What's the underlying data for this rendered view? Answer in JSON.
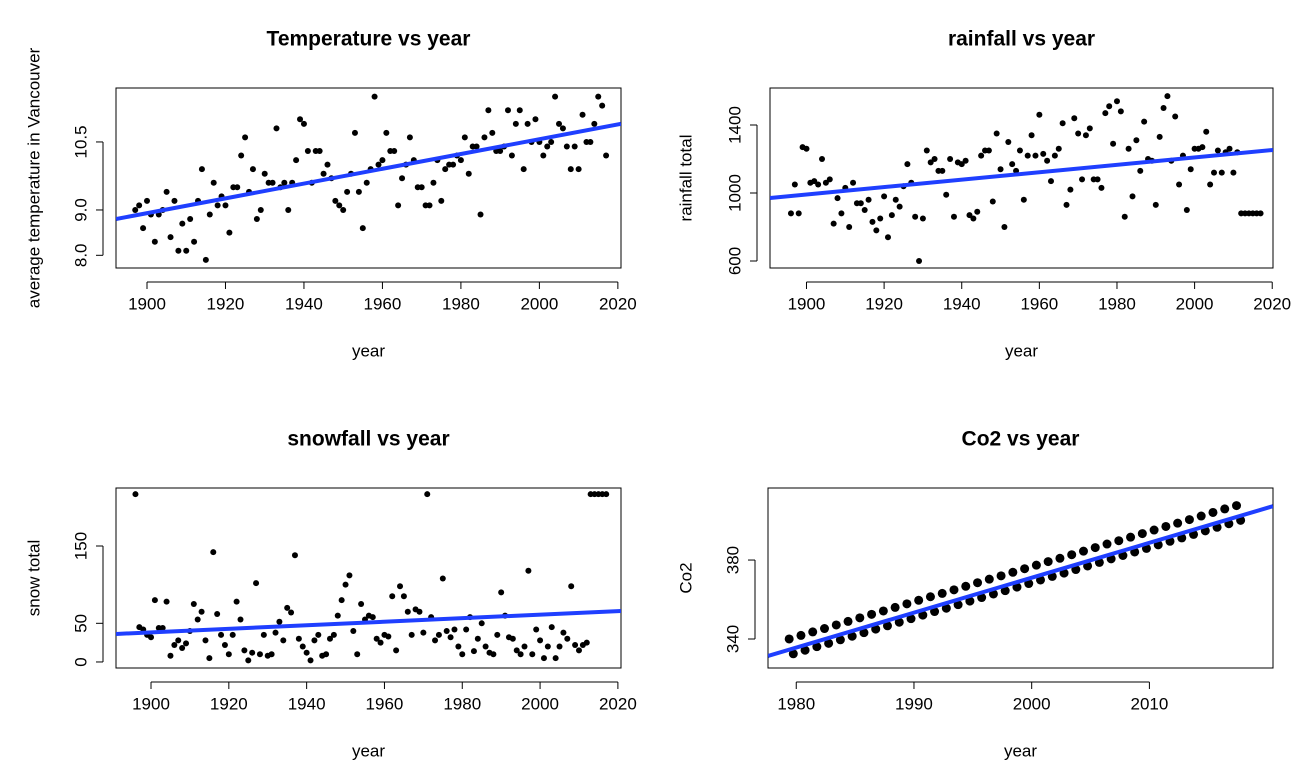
{
  "chart_data": [
    {
      "type": "scatter",
      "title": "Temperature vs year",
      "x_label": "year",
      "y_label": "average temperature in Vancouver",
      "color": "#000000",
      "x": [
        1897,
        1898,
        1899,
        1900,
        1901,
        1902,
        1903,
        1904,
        1905,
        1906,
        1907,
        1908,
        1909,
        1910,
        1911,
        1912,
        1913,
        1914,
        1915,
        1916,
        1917,
        1918,
        1919,
        1920,
        1921,
        1922,
        1923,
        1924,
        1925,
        1926,
        1927,
        1928,
        1929,
        1930,
        1931,
        1932,
        1933,
        1934,
        1935,
        1936,
        1937,
        1938,
        1939,
        1940,
        1941,
        1942,
        1943,
        1944,
        1945,
        1946,
        1947,
        1948,
        1949,
        1950,
        1951,
        1952,
        1953,
        1954,
        1955,
        1956,
        1957,
        1958,
        1959,
        1960,
        1961,
        1962,
        1963,
        1964,
        1965,
        1966,
        1967,
        1968,
        1969,
        1970,
        1971,
        1972,
        1973,
        1974,
        1975,
        1976,
        1977,
        1978,
        1979,
        1980,
        1981,
        1982,
        1983,
        1984,
        1985,
        1986,
        1987,
        1988,
        1989,
        1990,
        1991,
        1992,
        1993,
        1994,
        1995,
        1996,
        1997,
        1998,
        1999,
        2000,
        2001,
        2002,
        2003,
        2004,
        2005,
        2006,
        2007,
        2008,
        2009,
        2010,
        2011,
        2012,
        2013,
        2014,
        2015,
        2016,
        2017
      ],
      "values": [
        9.0,
        9.1,
        8.6,
        9.2,
        8.9,
        8.3,
        8.9,
        9.0,
        9.4,
        8.4,
        9.2,
        8.1,
        8.7,
        8.1,
        8.8,
        8.3,
        9.2,
        9.9,
        7.9,
        8.9,
        9.6,
        9.1,
        9.3,
        9.1,
        8.5,
        9.5,
        9.5,
        10.2,
        10.6,
        9.4,
        9.9,
        8.8,
        9.0,
        9.8,
        9.6,
        9.6,
        10.8,
        9.5,
        9.6,
        9.0,
        9.6,
        10.1,
        11.0,
        10.9,
        10.3,
        9.6,
        10.3,
        10.3,
        9.8,
        10.0,
        9.7,
        9.2,
        9.1,
        9.0,
        9.4,
        9.8,
        10.7,
        9.4,
        8.6,
        9.6,
        9.9,
        11.5,
        10.0,
        10.1,
        10.7,
        10.3,
        10.3,
        9.1,
        9.7,
        10.0,
        10.6,
        10.1,
        9.5,
        9.5,
        9.1,
        9.1,
        9.6,
        10.1,
        9.2,
        9.9,
        10.0,
        10.0,
        10.2,
        10.1,
        10.6,
        9.8,
        10.4,
        10.4,
        8.9,
        10.6,
        11.2,
        10.7,
        10.3,
        10.3,
        10.4,
        11.2,
        10.2,
        10.9,
        11.2,
        9.9,
        10.9,
        10.5,
        11.0,
        10.5,
        10.2,
        10.4,
        10.5,
        11.5,
        10.9,
        10.8,
        10.4,
        9.9,
        10.4,
        9.9,
        11.1,
        10.5,
        10.5,
        10.9,
        11.5,
        11.3,
        10.2
      ],
      "trend_x": [
        1892.1,
        2020.8
      ],
      "trend_values": [
        8.8,
        10.9
      ],
      "trend_color": "#1f3fff",
      "xlim": [
        1892.1,
        2020.8
      ],
      "ylim": [
        7.72,
        11.69
      ],
      "xticks": [
        1900,
        1920,
        1940,
        1960,
        1980,
        2000,
        2020
      ],
      "yticks": [
        {
          "value": 8,
          "label": "8.0"
        },
        {
          "value": 9,
          "label": "9.0"
        },
        10.5
      ]
    },
    {
      "type": "scatter",
      "title": "rainfall vs year",
      "x_label": "year",
      "y_label": "rainfall total",
      "color": "#000000",
      "x": [
        1896,
        1897,
        1898,
        1899,
        1900,
        1901,
        1902,
        1903,
        1904,
        1905,
        1906,
        1907,
        1908,
        1909,
        1910,
        1911,
        1912,
        1913,
        1914,
        1915,
        1916,
        1917,
        1918,
        1919,
        1920,
        1921,
        1922,
        1923,
        1924,
        1925,
        1926,
        1927,
        1928,
        1929,
        1930,
        1931,
        1932,
        1933,
        1934,
        1935,
        1936,
        1937,
        1938,
        1939,
        1940,
        1941,
        1942,
        1943,
        1944,
        1945,
        1946,
        1947,
        1948,
        1949,
        1950,
        1951,
        1952,
        1953,
        1954,
        1955,
        1956,
        1957,
        1958,
        1959,
        1960,
        1961,
        1962,
        1963,
        1964,
        1965,
        1966,
        1967,
        1968,
        1969,
        1970,
        1971,
        1972,
        1973,
        1974,
        1975,
        1976,
        1977,
        1978,
        1979,
        1980,
        1981,
        1982,
        1983,
        1984,
        1985,
        1986,
        1987,
        1988,
        1989,
        1990,
        1991,
        1992,
        1993,
        1994,
        1995,
        1996,
        1997,
        1998,
        1999,
        2000,
        2001,
        2002,
        2003,
        2004,
        2005,
        2006,
        2007,
        2008,
        2009,
        2010,
        2011,
        2012,
        2013,
        2014,
        2015,
        2016,
        2017
      ],
      "values": [
        880,
        1050,
        880,
        1270,
        1260,
        1060,
        1070,
        1050,
        1200,
        1060,
        1080,
        820,
        970,
        880,
        1030,
        800,
        1060,
        940,
        940,
        900,
        960,
        830,
        780,
        850,
        980,
        740,
        870,
        960,
        920,
        1040,
        1170,
        1060,
        860,
        600,
        850,
        1250,
        1180,
        1200,
        1130,
        1130,
        990,
        1200,
        860,
        1180,
        1170,
        1190,
        870,
        850,
        890,
        1220,
        1250,
        1250,
        950,
        1350,
        1140,
        800,
        1300,
        1170,
        1130,
        1250,
        960,
        1220,
        1340,
        1220,
        1460,
        1230,
        1190,
        1070,
        1220,
        1260,
        1410,
        930,
        1020,
        1440,
        1350,
        1080,
        1340,
        1380,
        1080,
        1080,
        1030,
        1470,
        1510,
        1290,
        1540,
        1480,
        860,
        1260,
        980,
        1310,
        1130,
        1420,
        1200,
        1190,
        930,
        1330,
        1500,
        1570,
        1190,
        1450,
        1050,
        1220,
        900,
        1140,
        1260,
        1260,
        1270,
        1360,
        1050,
        1120,
        1250,
        1120,
        1240,
        1260,
        1120,
        1240,
        880,
        880,
        880,
        880,
        880,
        880
      ],
      "trend_x": [
        1890.6,
        2020.2
      ],
      "trend_values": [
        970.6,
        1253
      ],
      "trend_color": "#1f3fff",
      "xlim": [
        1890.6,
        2020.2
      ],
      "ylim": [
        558.8,
        1617.6
      ],
      "xticks": [
        1900,
        1920,
        1940,
        1960,
        1980,
        2000,
        2020
      ],
      "yticks": [
        600,
        1000,
        1400
      ]
    },
    {
      "type": "scatter",
      "title": "snowfall vs year",
      "x_label": "year",
      "y_label": "snow total",
      "color": "#000000",
      "x": [
        1896,
        1897,
        1898,
        1899,
        1900,
        1901,
        1902,
        1903,
        1904,
        1905,
        1906,
        1907,
        1908,
        1909,
        1910,
        1911,
        1912,
        1913,
        1914,
        1915,
        1916,
        1917,
        1918,
        1919,
        1920,
        1921,
        1922,
        1923,
        1924,
        1925,
        1926,
        1927,
        1928,
        1929,
        1930,
        1931,
        1932,
        1933,
        1934,
        1935,
        1936,
        1937,
        1938,
        1939,
        1940,
        1941,
        1942,
        1943,
        1944,
        1945,
        1946,
        1947,
        1948,
        1949,
        1950,
        1951,
        1952,
        1953,
        1954,
        1955,
        1956,
        1957,
        1958,
        1959,
        1960,
        1961,
        1962,
        1963,
        1964,
        1965,
        1966,
        1967,
        1968,
        1969,
        1970,
        1971,
        1972,
        1973,
        1974,
        1975,
        1976,
        1977,
        1978,
        1979,
        1980,
        1981,
        1982,
        1983,
        1984,
        1985,
        1986,
        1987,
        1988,
        1989,
        1990,
        1991,
        1992,
        1993,
        1994,
        1995,
        1996,
        1997,
        1998,
        1999,
        2000,
        2001,
        2002,
        2003,
        2004,
        2005,
        2006,
        2007,
        2008,
        2009,
        2010,
        2011,
        2012,
        2013,
        2014,
        2015,
        2016,
        2017
      ],
      "values": [
        217,
        45,
        42,
        35,
        32,
        80,
        44,
        44,
        78,
        8,
        22,
        28,
        18,
        24,
        40,
        75,
        55,
        65,
        28,
        5,
        142,
        62,
        35,
        22,
        10,
        35,
        78,
        55,
        15,
        2,
        12,
        102,
        10,
        35,
        8,
        10,
        38,
        52,
        28,
        70,
        64,
        138,
        30,
        20,
        12,
        2,
        28,
        35,
        8,
        10,
        30,
        35,
        60,
        80,
        100,
        112,
        40,
        10,
        75,
        55,
        60,
        58,
        30,
        25,
        35,
        33,
        85,
        15,
        98,
        85,
        65,
        35,
        68,
        65,
        38,
        217,
        58,
        28,
        35,
        108,
        40,
        32,
        42,
        20,
        10,
        42,
        58,
        14,
        30,
        50,
        20,
        12,
        10,
        35,
        90,
        60,
        32,
        30,
        15,
        10,
        20,
        118,
        10,
        42,
        28,
        5,
        20,
        45,
        5,
        20,
        38,
        30,
        98,
        22,
        15,
        22,
        25,
        217,
        217,
        217,
        217,
        217
      ],
      "trend_x": [
        1891.0,
        2020.8
      ],
      "trend_values": [
        36.2,
        66
      ],
      "trend_color": "#1f3fff",
      "xlim": [
        1891.0,
        2020.8
      ],
      "ylim": [
        -7.8,
        225
      ],
      "xticks": [
        1900,
        1920,
        1940,
        1960,
        1980,
        2000,
        2020
      ],
      "yticks": [
        0,
        50,
        150
      ]
    },
    {
      "type": "scatter",
      "title": "Co2 vs year",
      "x_label": "year",
      "y_label": "Co2",
      "color": "#000000",
      "x": [
        1979.4,
        1979.75,
        1980.4,
        1980.75,
        1981.4,
        1981.75,
        1982.4,
        1982.75,
        1983.4,
        1983.75,
        1984.4,
        1984.75,
        1985.4,
        1985.75,
        1986.4,
        1986.75,
        1987.4,
        1987.75,
        1988.4,
        1988.75,
        1989.4,
        1989.75,
        1990.4,
        1990.75,
        1991.4,
        1991.75,
        1992.4,
        1992.75,
        1993.4,
        1993.75,
        1994.4,
        1994.75,
        1995.4,
        1995.75,
        1996.4,
        1996.75,
        1997.4,
        1997.75,
        1998.4,
        1998.75,
        1999.4,
        1999.75,
        2000.4,
        2000.75,
        2001.4,
        2001.75,
        2002.4,
        2002.75,
        2003.4,
        2003.75,
        2004.4,
        2004.75,
        2005.4,
        2005.75,
        2006.4,
        2006.75,
        2007.4,
        2007.75,
        2008.4,
        2008.75,
        2009.4,
        2009.75,
        2010.4,
        2010.75,
        2011.4,
        2011.75,
        2012.4,
        2012.75,
        2013.4,
        2013.75,
        2014.4,
        2014.75,
        2015.4,
        2015.75,
        2016.4,
        2016.75,
        2017.4,
        2017.75
      ],
      "values": [
        340.0,
        332.5,
        341.8,
        334.3,
        343.6,
        336.1,
        345.3,
        337.8,
        347.1,
        339.6,
        348.9,
        341.4,
        350.7,
        343.2,
        352.5,
        345.0,
        354.2,
        346.7,
        356.0,
        348.5,
        357.8,
        350.3,
        359.6,
        352.1,
        361.4,
        353.9,
        363.1,
        355.6,
        364.9,
        357.4,
        366.7,
        359.2,
        368.5,
        361.0,
        370.3,
        362.8,
        372.0,
        364.5,
        373.8,
        366.3,
        375.6,
        368.1,
        377.4,
        369.9,
        379.2,
        371.7,
        380.9,
        373.4,
        382.7,
        375.2,
        384.5,
        377.0,
        386.3,
        378.8,
        388.1,
        380.6,
        389.8,
        382.3,
        391.6,
        384.1,
        393.4,
        385.9,
        395.2,
        387.7,
        397.0,
        389.5,
        398.7,
        391.2,
        400.5,
        393.0,
        402.3,
        394.8,
        404.1,
        396.6,
        405.9,
        398.4,
        407.6,
        400.1
      ],
      "trend_x": [
        1977.6,
        2020.5
      ],
      "trend_values": [
        331.4,
        407.3
      ],
      "trend_color": "#1f3fff",
      "xlim": [
        1977.6,
        2020.5
      ],
      "ylim": [
        325.3,
        416.5
      ],
      "xticks": [
        1980,
        1990,
        2000,
        2010
      ],
      "yticks": [
        340,
        380
      ]
    }
  ]
}
